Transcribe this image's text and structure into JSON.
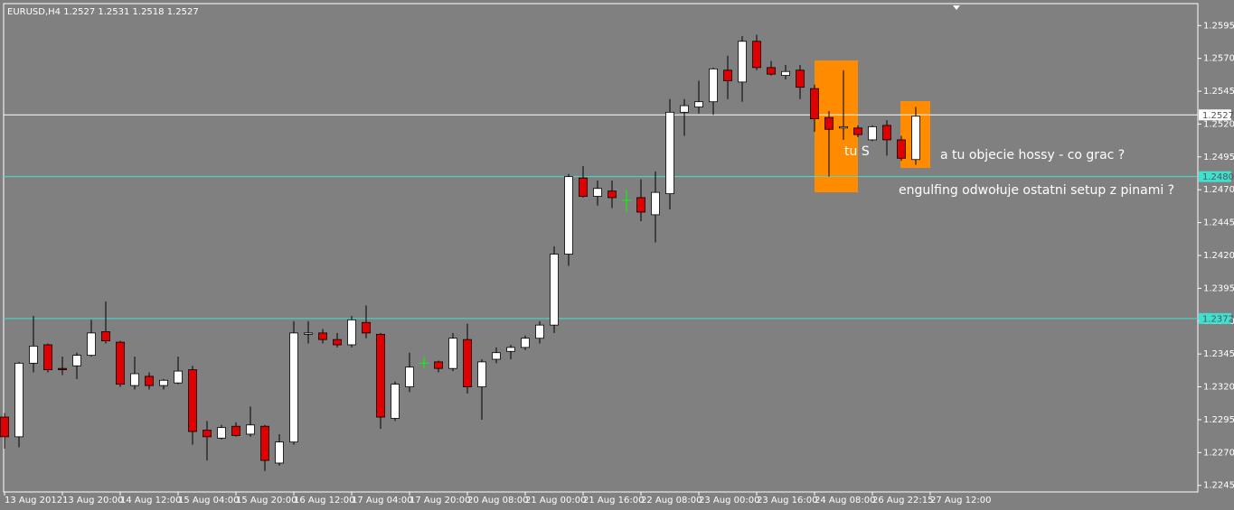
{
  "chart_data": {
    "type": "candlestick",
    "header": "EURUSD,H4  1.2527 1.2531 1.2518 1.2527",
    "open": [
      1.2297,
      1.2282,
      1.2338,
      1.2352,
      1.2334,
      1.2336,
      1.2344,
      1.2362,
      1.2354,
      1.2321,
      1.2328,
      1.2321,
      1.2323,
      1.2333,
      1.2287,
      1.2281,
      1.229,
      1.2284,
      1.229,
      1.2262,
      1.2278,
      1.236,
      1.2361,
      1.2356,
      1.2352,
      1.2369,
      1.236,
      1.2296,
      1.232,
      1.2338,
      1.2339,
      1.2334,
      1.2356,
      1.232,
      1.2341,
      1.2347,
      1.235,
      1.2357,
      1.2367,
      1.2421,
      1.2479,
      1.2465,
      1.2469,
      1.2462,
      1.2464,
      1.2451,
      1.2467,
      1.2529,
      1.2533,
      1.2537,
      1.2561,
      1.2552,
      1.2583,
      1.2563,
      1.2557,
      1.2561,
      1.2547,
      1.2525,
      1.2517,
      1.2517,
      1.2508,
      1.2519,
      1.2508,
      1.2493
    ],
    "high": [
      1.23,
      1.2339,
      1.2374,
      1.2353,
      1.2343,
      1.2346,
      1.2371,
      1.2385,
      1.2355,
      1.2343,
      1.2331,
      1.2326,
      1.2343,
      1.2336,
      1.2294,
      1.2291,
      1.2293,
      1.2305,
      1.2291,
      1.2284,
      1.237,
      1.237,
      1.2364,
      1.2361,
      1.2374,
      1.2382,
      1.2361,
      1.2324,
      1.2346,
      1.2343,
      1.234,
      1.2361,
      1.2368,
      1.2341,
      1.235,
      1.2352,
      1.2359,
      1.237,
      1.2427,
      1.2482,
      1.2488,
      1.2477,
      1.2477,
      1.247,
      1.2478,
      1.2484,
      1.2539,
      1.2539,
      1.2553,
      1.2563,
      1.2572,
      1.2587,
      1.2588,
      1.2568,
      1.2565,
      1.2565,
      1.255,
      1.253,
      1.2561,
      1.2519,
      1.2519,
      1.2523,
      1.2511,
      1.2533
    ],
    "low": [
      1.2273,
      1.2274,
      1.2331,
      1.2331,
      1.2329,
      1.2326,
      1.2343,
      1.2353,
      1.232,
      1.2318,
      1.2318,
      1.2318,
      1.2322,
      1.2276,
      1.2264,
      1.228,
      1.2282,
      1.2282,
      1.2256,
      1.226,
      1.2276,
      1.2353,
      1.2353,
      1.235,
      1.235,
      1.2357,
      1.2288,
      1.2294,
      1.2316,
      1.2334,
      1.2331,
      1.2332,
      1.2315,
      1.2295,
      1.2338,
      1.2341,
      1.2348,
      1.2353,
      1.2361,
      1.2412,
      1.2464,
      1.2458,
      1.2456,
      1.2453,
      1.2446,
      1.243,
      1.2455,
      1.2511,
      1.2528,
      1.2527,
      1.2539,
      1.2537,
      1.2561,
      1.2557,
      1.2554,
      1.2539,
      1.2514,
      1.248,
      1.2508,
      1.251,
      1.2507,
      1.2496,
      1.2492,
      1.2489
    ],
    "close": [
      1.2282,
      1.2338,
      1.2351,
      1.2333,
      1.2333,
      1.2344,
      1.2361,
      1.2355,
      1.2322,
      1.233,
      1.2321,
      1.2325,
      1.2332,
      1.2286,
      1.2282,
      1.2289,
      1.2283,
      1.2291,
      1.2264,
      1.2278,
      1.2361,
      1.2361,
      1.2356,
      1.2352,
      1.2371,
      1.2361,
      1.2297,
      1.2322,
      1.2335,
      1.2338,
      1.2334,
      1.2357,
      1.232,
      1.2339,
      1.2346,
      1.235,
      1.2357,
      1.2367,
      1.2421,
      1.248,
      1.2465,
      1.2471,
      1.2464,
      1.2462,
      1.2453,
      1.2468,
      1.2529,
      1.2534,
      1.2537,
      1.2562,
      1.2553,
      1.2583,
      1.2563,
      1.2558,
      1.256,
      1.2548,
      1.2524,
      1.2516,
      1.2518,
      1.2512,
      1.2518,
      1.2508,
      1.2494,
      1.2526
    ],
    "up_color": "#ffffff",
    "down_color": "#e00000",
    "doji_color": "#00ff00",
    "wick_color": "#000000",
    "xtick_labels": [
      "13 Aug 2012",
      "13 Aug 20:00",
      "14 Aug 12:00",
      "15 Aug 04:00",
      "15 Aug 20:00",
      "16 Aug 12:00",
      "17 Aug 04:00",
      "17 Aug 20:00",
      "20 Aug 08:00",
      "21 Aug 00:00",
      "21 Aug 16:00",
      "22 Aug 08:00",
      "23 Aug 00:00",
      "23 Aug 16:00",
      "24 Aug 08:00",
      "26 Aug 22:15",
      "27 Aug 12:00"
    ],
    "ylim": [
      1.224,
      1.2611
    ],
    "yticks": [
      1.2245,
      {
        "value": 1.227,
        "label": "1.2270"
      },
      1.2295,
      {
        "value": 1.232,
        "label": "1.2320"
      },
      1.2345,
      {
        "value": 1.237,
        "label": "1.2370"
      },
      1.2395,
      {
        "value": 1.242,
        "label": "1.2420"
      },
      1.2445,
      {
        "value": 1.247,
        "label": "1.2470"
      },
      1.2495,
      {
        "value": 1.252,
        "label": "1.2520"
      },
      1.2545,
      {
        "value": 1.257,
        "label": "1.2570"
      },
      1.2595
    ],
    "hlines": [
      {
        "value": 1.2527,
        "label": "1.2527",
        "color": "#ffffff"
      },
      {
        "value": 1.248,
        "label": "1.2480",
        "color": "#40e0d0"
      },
      {
        "value": 1.2372,
        "label": "1.2372",
        "color": "#40e0d0"
      }
    ],
    "annotations": [
      "tu S",
      "a tu objecie hossy - co grac ?",
      "engulfing odwołuje ostatni setup z pinami ?"
    ]
  }
}
